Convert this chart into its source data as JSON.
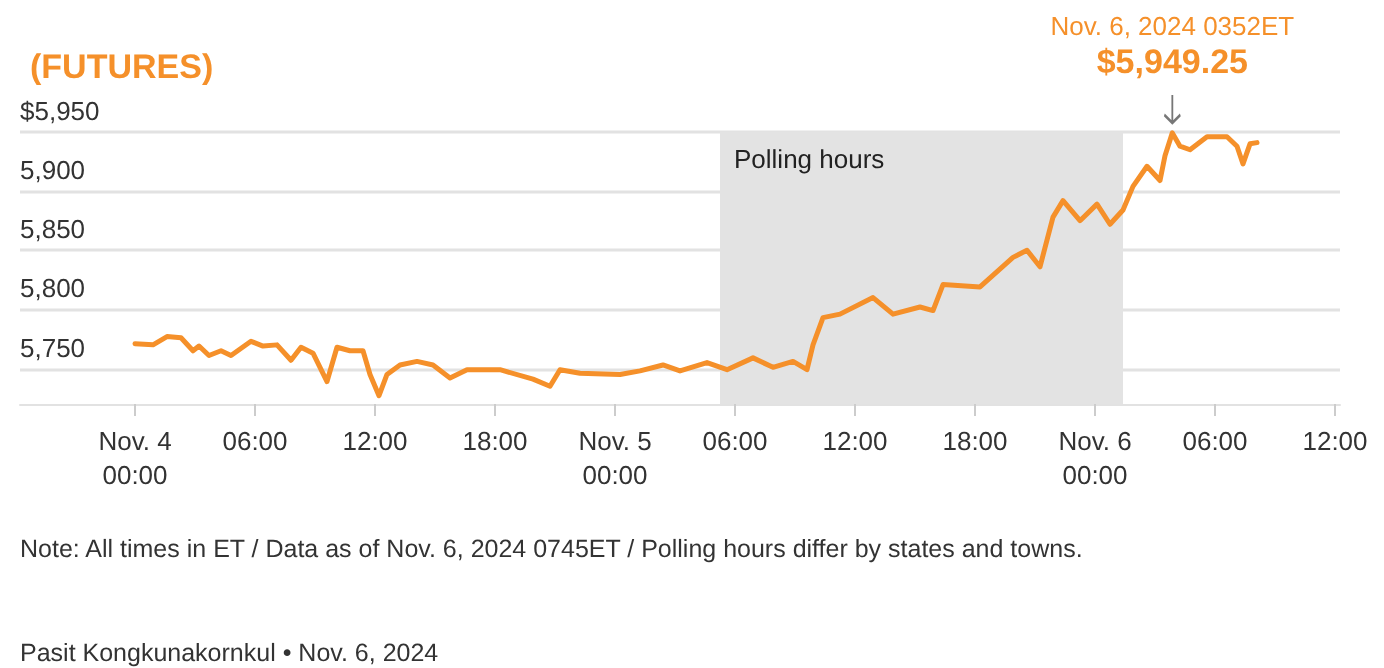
{
  "chart_data": {
    "type": "line",
    "title": "(FUTURES)",
    "x": [
      "2024-11-04T00:00",
      "2024-11-04T00:54",
      "2024-11-04T01:36",
      "2024-11-04T02:18",
      "2024-11-04T02:54",
      "2024-11-04T03:12",
      "2024-11-04T03:42",
      "2024-11-04T04:18",
      "2024-11-04T04:48",
      "2024-11-04T05:48",
      "2024-11-04T06:24",
      "2024-11-04T07:06",
      "2024-11-04T07:48",
      "2024-11-04T08:18",
      "2024-11-04T08:54",
      "2024-11-04T09:36",
      "2024-11-04T10:06",
      "2024-11-04T10:45",
      "2024-11-04T11:24",
      "2024-11-04T11:45",
      "2024-11-04T12:12",
      "2024-11-04T12:36",
      "2024-11-04T13:15",
      "2024-11-04T14:06",
      "2024-11-04T14:54",
      "2024-11-04T15:45",
      "2024-11-04T16:36",
      "2024-11-04T18:15",
      "2024-11-04T19:54",
      "2024-11-04T20:45",
      "2024-11-04T21:15",
      "2024-11-04T22:15",
      "2024-11-05T00:15",
      "2024-11-05T01:15",
      "2024-11-05T02:24",
      "2024-11-05T03:15",
      "2024-11-05T04:36",
      "2024-11-05T05:36",
      "2024-11-05T06:54",
      "2024-11-05T07:54",
      "2024-11-05T08:54",
      "2024-11-05T09:36",
      "2024-11-05T09:54",
      "2024-11-05T10:24",
      "2024-11-05T11:15",
      "2024-11-05T12:54",
      "2024-11-05T13:54",
      "2024-11-05T15:15",
      "2024-11-05T15:54",
      "2024-11-05T16:24",
      "2024-11-05T18:15",
      "2024-11-05T19:54",
      "2024-11-05T20:36",
      "2024-11-05T21:15",
      "2024-11-05T21:54",
      "2024-11-05T22:24",
      "2024-11-05T23:15",
      "2024-11-06T00:06",
      "2024-11-06T00:45",
      "2024-11-06T01:24",
      "2024-11-06T01:54",
      "2024-11-06T02:36",
      "2024-11-06T03:15",
      "2024-11-06T03:30",
      "2024-11-06T03:52",
      "2024-11-06T04:15",
      "2024-11-06T04:45",
      "2024-11-06T05:36",
      "2024-11-06T06:36",
      "2024-11-06T07:06",
      "2024-11-06T07:24",
      "2024-11-06T07:45",
      "2024-11-06T08:06"
    ],
    "series": [
      {
        "color": "#f5902a",
        "values": [
          5771,
          5770,
          5777,
          5776,
          5765,
          5769,
          5761,
          5765,
          5761,
          5773,
          5769,
          5770,
          5757,
          5768,
          5763,
          5739,
          5768,
          5765,
          5765,
          5745,
          5727,
          5745,
          5753,
          5756,
          5753,
          5742,
          5749,
          5749,
          5741,
          5735,
          5749,
          5746,
          5745,
          5748,
          5753,
          5748,
          5755,
          5749,
          5759,
          5751,
          5756,
          5749,
          5770,
          5793,
          5796,
          5810,
          5796,
          5802,
          5799,
          5821,
          5819,
          5844,
          5850,
          5836,
          5878,
          5892,
          5875,
          5889,
          5872,
          5884,
          5904,
          5921,
          5909,
          5930,
          5949.25,
          5938,
          5935,
          5946,
          5946,
          5938,
          5923,
          5940,
          5941
        ]
      }
    ],
    "xlim": [
      "2024-11-03T18:15",
      "2024-11-06T12:15"
    ],
    "xticks": [
      {
        "value": "2024-11-04T00:00",
        "label": "Nov. 4\n00:00"
      },
      {
        "value": "2024-11-04T06:00",
        "label": "06:00"
      },
      {
        "value": "2024-11-04T12:00",
        "label": "12:00"
      },
      {
        "value": "2024-11-04T18:00",
        "label": "18:00"
      },
      {
        "value": "2024-11-05T00:00",
        "label": "Nov. 5\n00:00"
      },
      {
        "value": "2024-11-05T06:00",
        "label": "06:00"
      },
      {
        "value": "2024-11-05T12:00",
        "label": "12:00"
      },
      {
        "value": "2024-11-05T18:00",
        "label": "18:00"
      },
      {
        "value": "2024-11-06T00:00",
        "label": "Nov. 6\n00:00"
      },
      {
        "value": "2024-11-06T06:00",
        "label": "06:00"
      },
      {
        "value": "2024-11-06T12:00",
        "label": "12:00"
      }
    ],
    "ylim": [
      5720,
      5950
    ],
    "yticks": [
      {
        "value": 5750,
        "label": "5,750"
      },
      {
        "value": 5800,
        "label": "5,800"
      },
      {
        "value": 5850,
        "label": "5,850"
      },
      {
        "value": 5900,
        "label": "5,900"
      },
      {
        "value": 5950,
        "label": "$5,950"
      }
    ],
    "bands": [
      {
        "axis": "x",
        "from": "2024-11-05T05:15",
        "to": "2024-11-06T01:24",
        "label": "Polling hours",
        "color": "#e3e3e3"
      }
    ],
    "annotations": [
      {
        "text": "Nov. 6, 2024 0352ET\n$5,949.25",
        "x": "2024-11-06T03:52",
        "y": 5949.25
      },
      "Note: All times in ET / Data as of Nov. 6, 2024 0745ET / Polling hours differ by states and towns.",
      "Pasit Kongkunakornkul • Nov. 6, 2024"
    ],
    "grid": "y",
    "marker": "none",
    "line_style": "solid"
  }
}
